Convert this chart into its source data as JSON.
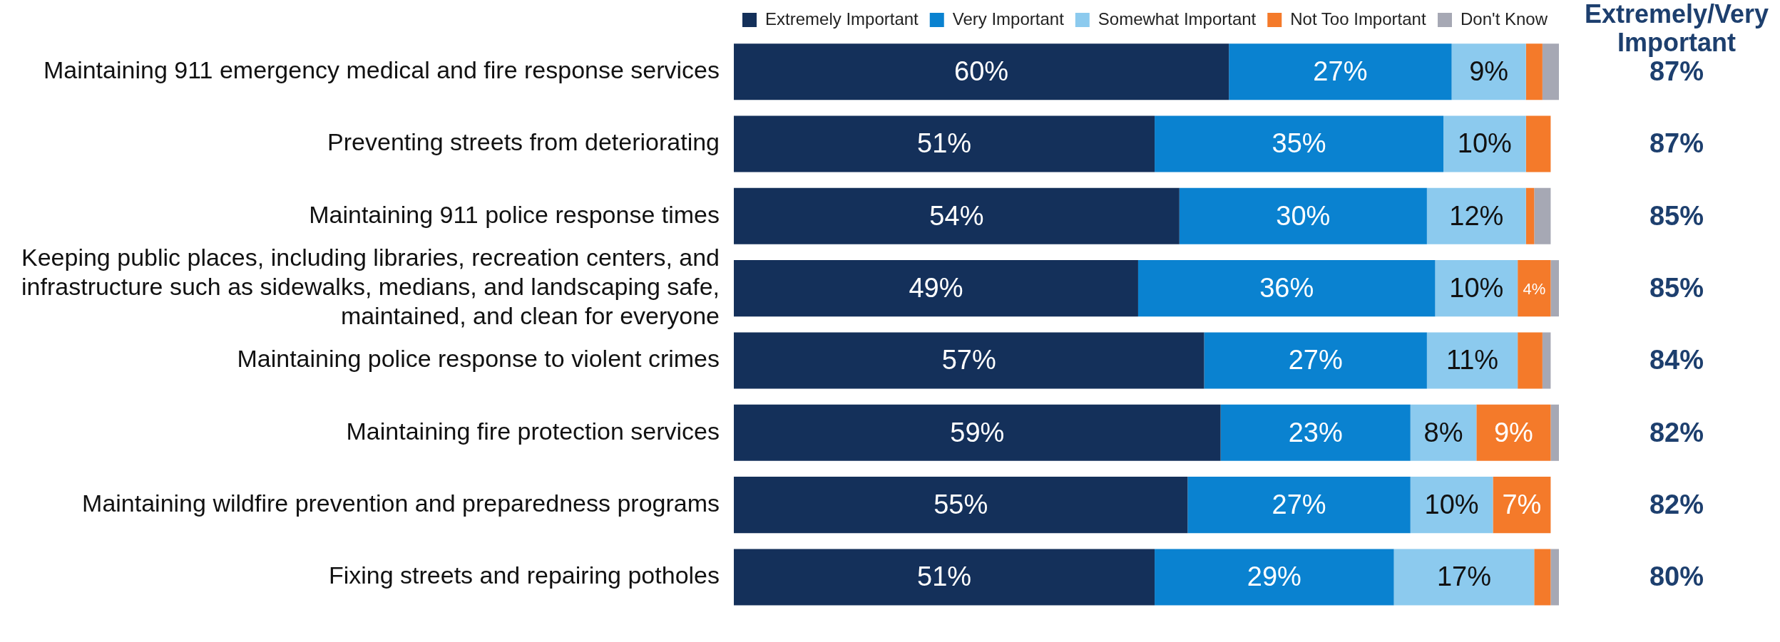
{
  "chart_data": {
    "type": "bar",
    "orientation": "horizontal",
    "stacked": true,
    "legend": "top right",
    "tick_labels": "y",
    "grid": false,
    "xlim": [
      0,
      100
    ],
    "categories": [
      "Maintaining 911 emergency medical and fire response services",
      "Preventing streets from deteriorating",
      "Maintaining 911 police response times",
      "Keeping public places, including libraries, recreation centers, and infrastructure such as sidewalks, medians, and landscaping safe, maintained, and clean for everyone",
      "Maintaining police response to violent crimes",
      "Maintaining fire protection services",
      "Maintaining wildfire prevention and preparedness programs",
      "Fixing streets and repairing potholes"
    ],
    "series": [
      {
        "name": "Extremely Important",
        "color": "#14305a",
        "values": [
          60,
          51,
          54,
          49,
          57,
          59,
          55,
          51
        ],
        "value_labels": [
          "60%",
          "51%",
          "54%",
          "49%",
          "57%",
          "59%",
          "55%",
          "51%"
        ]
      },
      {
        "name": "Very Important",
        "color": "#0a82d0",
        "values": [
          27,
          35,
          30,
          36,
          27,
          23,
          27,
          29
        ],
        "value_labels": [
          "27%",
          "35%",
          "30%",
          "36%",
          "27%",
          "23%",
          "27%",
          "29%"
        ]
      },
      {
        "name": "Somewhat Important",
        "color": "#8ccaee",
        "values": [
          9,
          10,
          12,
          10,
          11,
          8,
          10,
          17
        ],
        "value_labels": [
          "9%",
          "10%",
          "12%",
          "10%",
          "11%",
          "8%",
          "10%",
          "17%"
        ]
      },
      {
        "name": "Not Too Important",
        "color": "#f47a2a",
        "values": [
          2,
          3,
          1,
          4,
          3,
          9,
          7,
          2
        ],
        "value_labels": [
          null,
          null,
          null,
          "4%",
          null,
          "9%",
          "7%",
          null
        ]
      },
      {
        "name": "Don't Know",
        "color": "#a6a8b4",
        "values": [
          2,
          null,
          2,
          1,
          1,
          1,
          null,
          1
        ],
        "value_labels": [
          null,
          null,
          null,
          null,
          null,
          null,
          null,
          null
        ]
      }
    ],
    "annotations": [
      "Extremely/Very Important",
      "87%",
      "87%",
      "85%",
      "85%",
      "84%",
      "82%",
      "82%",
      "80%"
    ]
  }
}
